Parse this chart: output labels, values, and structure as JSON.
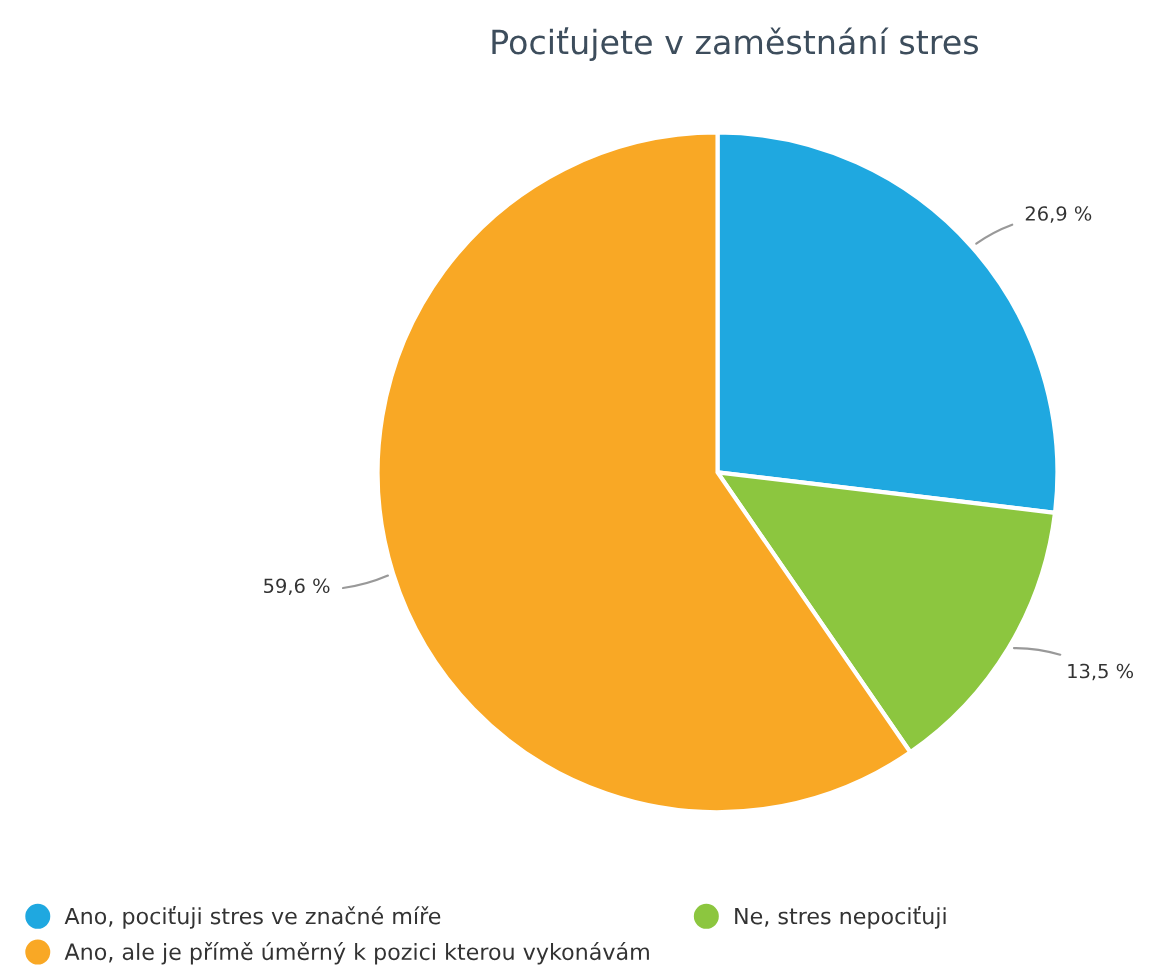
{
  "chart_data": {
    "type": "pie",
    "title": "Pociťujete v zaměstnání stres",
    "categories": [
      "Ano, pociťuji stres ve značné míře",
      "Ne, stres nepociťuji",
      "Ano, ale je přímě úměrný k pozici kterou vykonávám"
    ],
    "values": [
      26.9,
      13.5,
      59.6
    ],
    "colors": [
      "#1fa8e0",
      "#8cc63f",
      "#f9a825"
    ],
    "value_labels": [
      "26,9 %",
      "13,5 %",
      "59,6 %"
    ],
    "legend": "bottom left"
  }
}
